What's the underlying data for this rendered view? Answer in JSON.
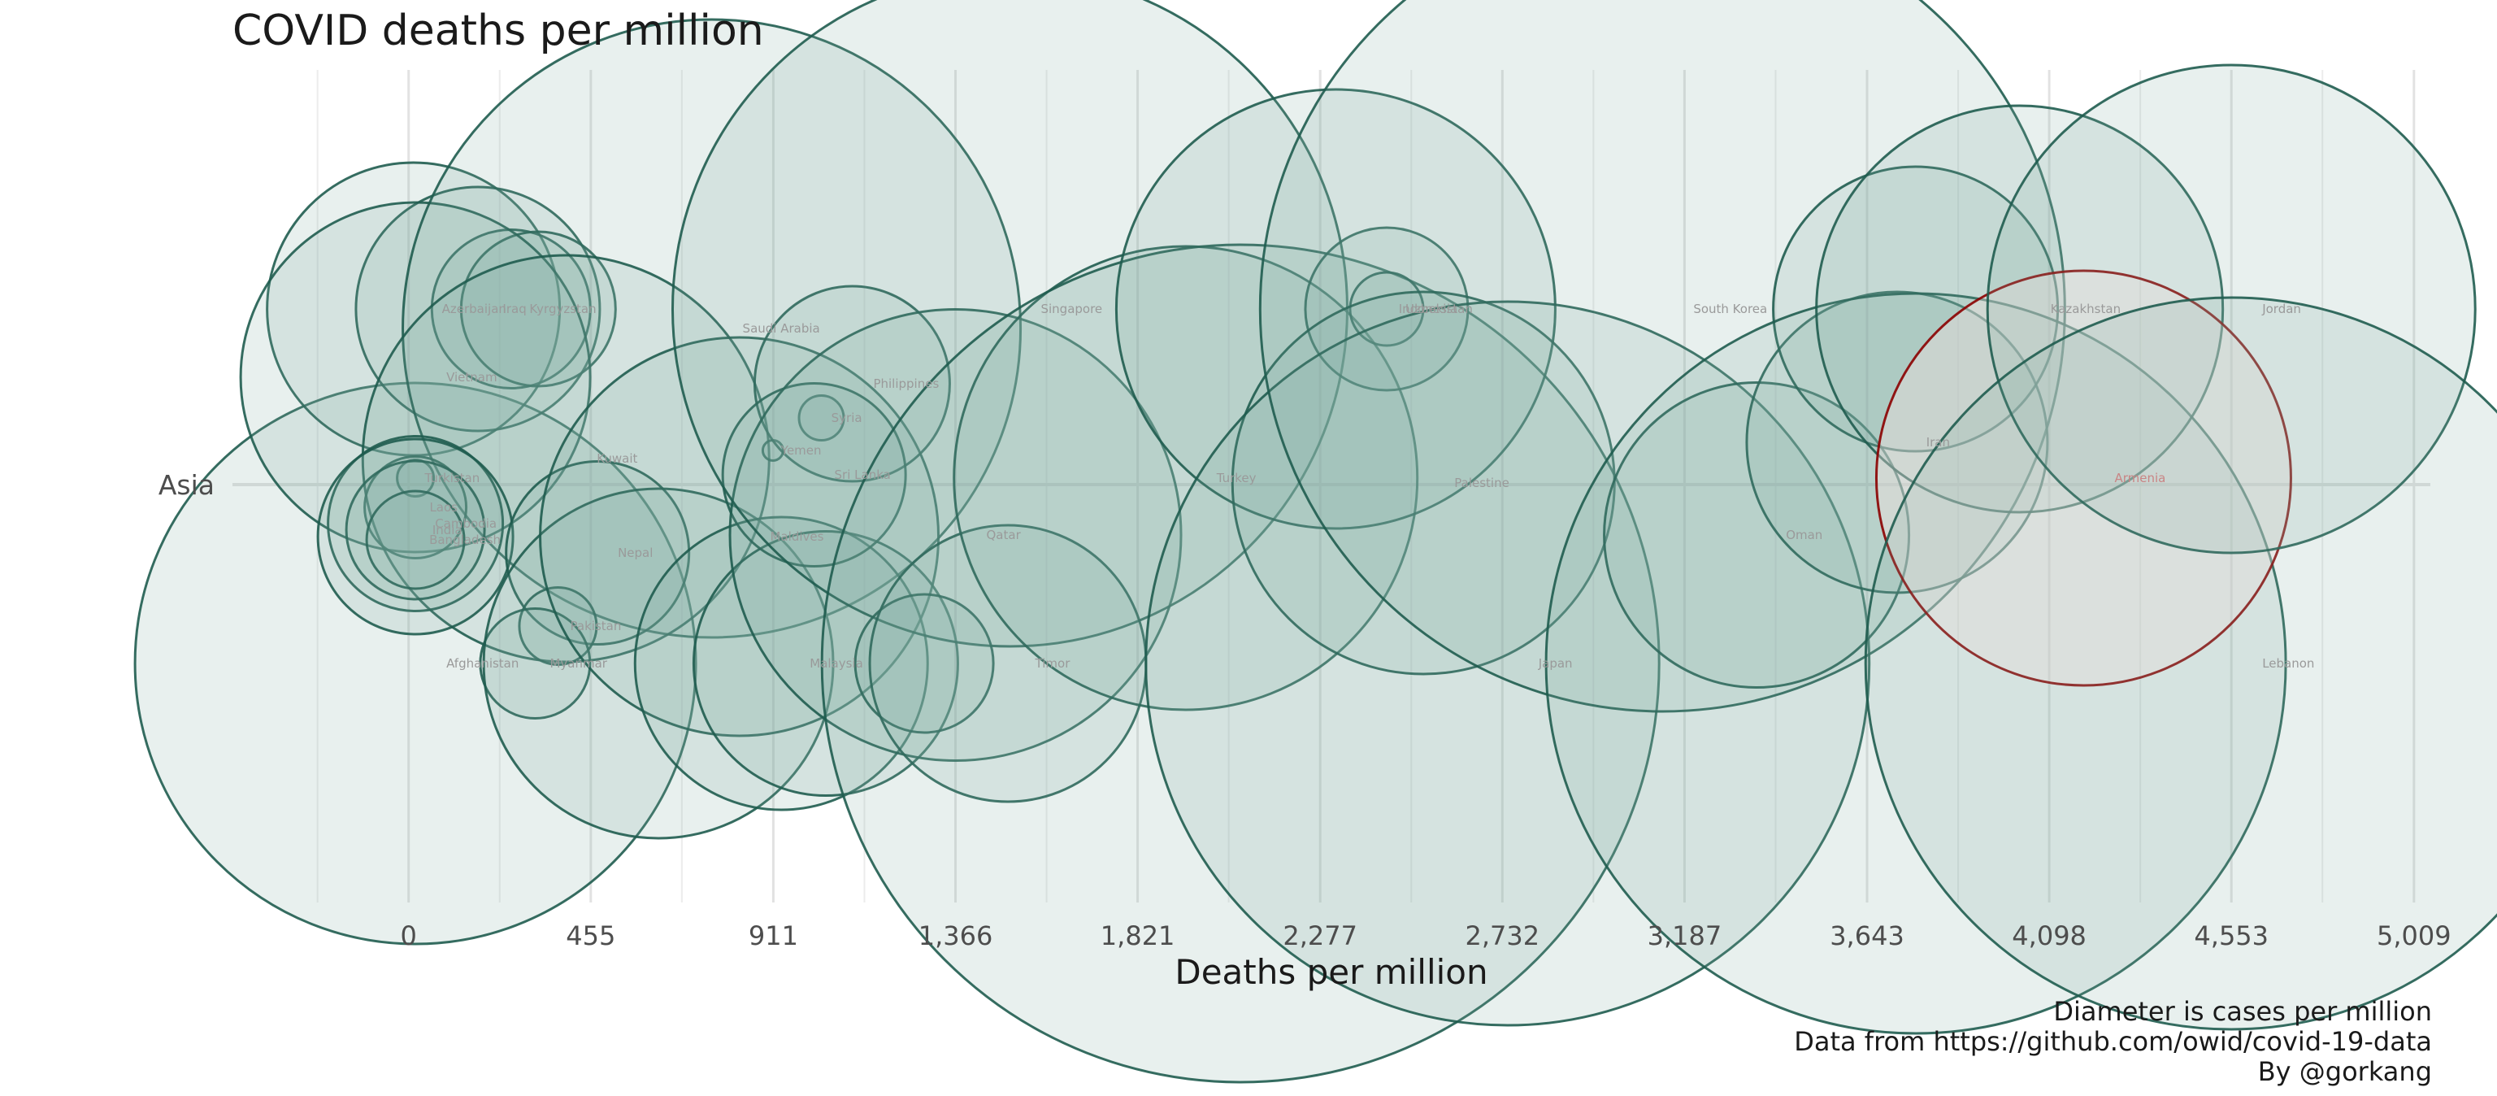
{
  "chart_data": {
    "type": "scatter",
    "title": "COVID deaths per million",
    "xlabel": "Deaths per million",
    "ylabel": "",
    "categories": [
      "Asia"
    ],
    "x_ticks": [
      "0",
      "455",
      "911",
      "1,366",
      "1,821",
      "2,277",
      "2,732",
      "3,187",
      "3,643",
      "4,098",
      "4,553",
      "5,009"
    ],
    "xlim": [
      -440,
      5050
    ],
    "grid": true,
    "highlight_color": "#8b0000",
    "base_color": "#1f5c4f",
    "points": [
      {
        "label": "Afghanistan",
        "x": 17,
        "jitter": -1.1,
        "size": 690
      },
      {
        "label": "Azerbaijan",
        "x": 12,
        "jitter": 1.08,
        "size": 360
      },
      {
        "label": "Iraq",
        "x": 173,
        "jitter": 1.08,
        "size": 300
      },
      {
        "label": "Kyrgyzstan",
        "x": 256,
        "jitter": 1.08,
        "size": 195
      },
      {
        "label": "",
        "x": 324,
        "jitter": 1.08,
        "size": 190
      },
      {
        "label": "Vietnam",
        "x": 17,
        "jitter": 0.66,
        "size": 430
      },
      {
        "label": "Saudi Arabia",
        "x": 757,
        "jitter": 0.96,
        "size": 760
      },
      {
        "label": "Kuwait",
        "x": 393,
        "jitter": 0.16,
        "size": 500
      },
      {
        "label": "Turkistan",
        "x": 17,
        "jitter": 0.04,
        "size": 45
      },
      {
        "label": "Laos",
        "x": 17,
        "jitter": -0.14,
        "size": 125
      },
      {
        "label": "Cambodia",
        "x": 17,
        "jitter": -0.24,
        "size": 215
      },
      {
        "label": "India",
        "x": 17,
        "jitter": -0.28,
        "size": 170
      },
      {
        "label": "Bangladesh",
        "x": 17,
        "jitter": -0.34,
        "size": 120
      },
      {
        "label": "",
        "x": 17,
        "jitter": -0.32,
        "size": 240
      },
      {
        "label": "Nepal",
        "x": 472,
        "jitter": -0.42,
        "size": 225
      },
      {
        "label": "Pakistan",
        "x": 373,
        "jitter": -0.87,
        "size": 95
      },
      {
        "label": "Myanmar",
        "x": 316,
        "jitter": -1.1,
        "size": 135
      },
      {
        "label": "",
        "x": 624,
        "jitter": -1.1,
        "size": 430
      },
      {
        "label": "Maldives",
        "x": 826,
        "jitter": -0.32,
        "size": 490
      },
      {
        "label": "Malaysia",
        "x": 931,
        "jitter": -1.1,
        "size": 360
      },
      {
        "label": "",
        "x": 1042,
        "jitter": -1.1,
        "size": 325
      },
      {
        "label": "Yemen",
        "x": 910,
        "jitter": 0.21,
        "size": 25
      },
      {
        "label": "Syria",
        "x": 1031,
        "jitter": 0.41,
        "size": 55
      },
      {
        "label": "Philippines",
        "x": 1108,
        "jitter": 0.62,
        "size": 240
      },
      {
        "label": "Sri Lanka",
        "x": 1013,
        "jitter": 0.06,
        "size": 225
      },
      {
        "label": "Qatar",
        "x": 1366,
        "jitter": -0.31,
        "size": 555
      },
      {
        "label": "Singapore",
        "x": 1502,
        "jitter": 1.08,
        "size": 830
      },
      {
        "label": "",
        "x": 1288,
        "jitter": -1.1,
        "size": 170
      },
      {
        "label": "Timor",
        "x": 1497,
        "jitter": -1.1,
        "size": 340
      },
      {
        "label": "Turkey",
        "x": 1941,
        "jitter": 0.04,
        "size": 570
      },
      {
        "label": "",
        "x": 2078,
        "jitter": -1.1,
        "size": 1030
      },
      {
        "label": "Uzbekistan",
        "x": 2443,
        "jitter": 1.08,
        "size": 200
      },
      {
        "label": "Indonesia",
        "x": 2443,
        "jitter": 1.08,
        "size": 90
      },
      {
        "label": "",
        "x": 2316,
        "jitter": 1.08,
        "size": 540
      },
      {
        "label": "Palestine",
        "x": 2535,
        "jitter": 0.01,
        "size": 470
      },
      {
        "label": "Japan",
        "x": 2745,
        "jitter": -1.1,
        "size": 890
      },
      {
        "label": "South Korea",
        "x": 3132,
        "jitter": 1.08,
        "size": 990
      },
      {
        "label": "Oman",
        "x": 3367,
        "jitter": -0.31,
        "size": 375
      },
      {
        "label": "Iran",
        "x": 3718,
        "jitter": 0.26,
        "size": 370
      },
      {
        "label": "",
        "x": 3764,
        "jitter": 1.08,
        "size": 350
      },
      {
        "label": "",
        "x": 3765,
        "jitter": -1.1,
        "size": 910
      },
      {
        "label": "Kazakhstan",
        "x": 4024,
        "jitter": 1.08,
        "size": 500
      },
      {
        "label": "Armenia",
        "x": 4184,
        "jitter": 0.04,
        "size": 510,
        "highlight": true
      },
      {
        "label": "Jordan",
        "x": 4553,
        "jitter": 1.08,
        "size": 600
      },
      {
        "label": "Lebanon",
        "x": 4553,
        "jitter": -1.1,
        "size": 900
      }
    ]
  },
  "caption": {
    "line1": "Diameter is cases per million",
    "line2": "Data from https://github.com/owid/covid-19-data",
    "line3": "By @gorkang"
  }
}
